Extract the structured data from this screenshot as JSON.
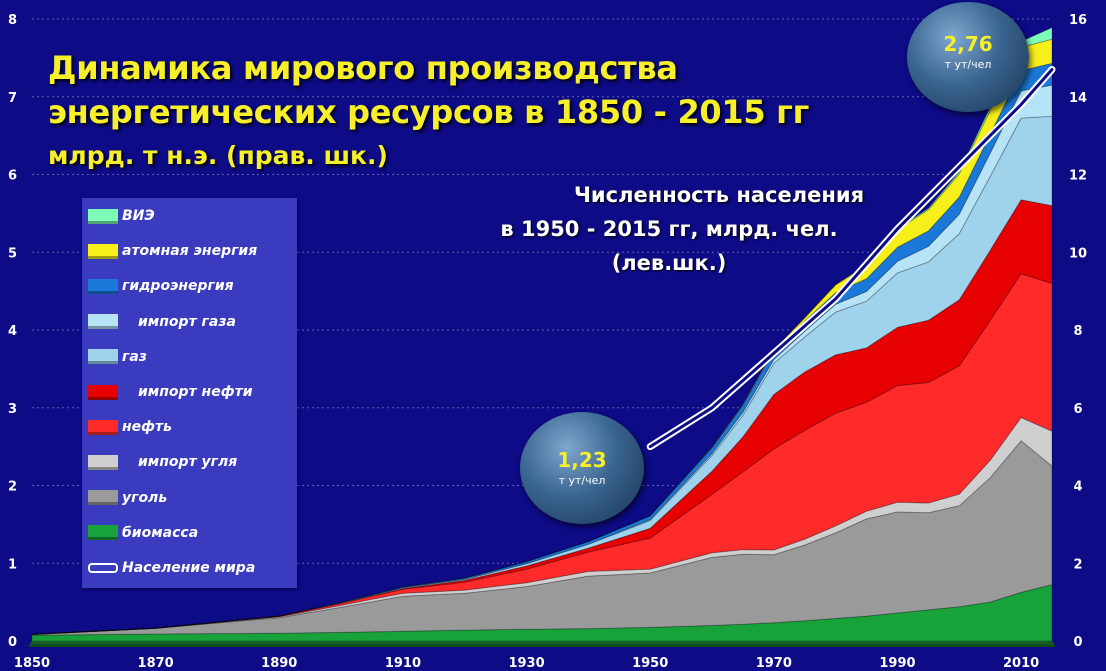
{
  "title": {
    "line1": "Динамика мирового производства",
    "line2": "энергетических ресурсов в 1850 - 2015 гг",
    "line3": "млрд. т н.э. (прав. шк.)"
  },
  "population_label": {
    "line1": "Численность населения",
    "line2": "в 1950 - 2015 гг, млрд. чел. (лев.шк.)"
  },
  "bubbles": [
    {
      "value": "1,23",
      "unit": "т ут/чел"
    },
    {
      "value": "2,76",
      "unit": "т ут/чел"
    }
  ],
  "legend": [
    {
      "label": "ВИЭ",
      "color": "#7dfcb7",
      "indent": false
    },
    {
      "label": "атомная энергия",
      "color": "#f7ef1a",
      "indent": false
    },
    {
      "label": "гидроэнергия",
      "color": "#1a78d8",
      "indent": false
    },
    {
      "label": "импорт газа",
      "color": "#b7e3f6",
      "indent": true
    },
    {
      "label": "газ",
      "color": "#9fd3ec",
      "indent": false
    },
    {
      "label": "импорт нефти",
      "color": "#e60000",
      "indent": true
    },
    {
      "label": "нефть",
      "color": "#ff2a2a",
      "indent": false
    },
    {
      "label": "импорт угля",
      "color": "#cfcfcf",
      "indent": true
    },
    {
      "label": "уголь",
      "color": "#9a9a9a",
      "indent": false
    },
    {
      "label": "биомасса",
      "color": "#18a23a",
      "indent": false
    },
    {
      "label": "Население мира",
      "color": "#ffffff",
      "indent": false,
      "line": true
    }
  ],
  "chart_data": {
    "type": "area",
    "x_ticks": [
      "1850",
      "1870",
      "1890",
      "1910",
      "1930",
      "1950",
      "1970",
      "1990",
      "2010"
    ],
    "left_axis_ticks": [
      "0",
      "1",
      "2",
      "3",
      "4",
      "5",
      "6",
      "7",
      "8"
    ],
    "right_axis_ticks": [
      "0",
      "2",
      "4",
      "6",
      "8",
      "10",
      "12",
      "14",
      "16"
    ],
    "xlim": [
      1850,
      2015
    ],
    "ylim_right": [
      0,
      16
    ],
    "ylim_left": [
      0,
      8
    ],
    "x": [
      1850,
      1870,
      1890,
      1900,
      1910,
      1920,
      1930,
      1940,
      1950,
      1960,
      1965,
      1970,
      1975,
      1980,
      1985,
      1990,
      1995,
      2000,
      2005,
      2010,
      2015
    ],
    "series": [
      {
        "name": "биомасса",
        "color": "#18a23a",
        "values": [
          0.15,
          0.18,
          0.2,
          0.22,
          0.25,
          0.28,
          0.3,
          0.32,
          0.35,
          0.4,
          0.43,
          0.47,
          0.52,
          0.58,
          0.64,
          0.72,
          0.8,
          0.88,
          1.0,
          1.25,
          1.45
        ]
      },
      {
        "name": "уголь",
        "color": "#9a9a9a",
        "values": [
          0.02,
          0.15,
          0.4,
          0.65,
          0.9,
          0.95,
          1.1,
          1.35,
          1.4,
          1.75,
          1.8,
          1.75,
          1.95,
          2.2,
          2.5,
          2.6,
          2.5,
          2.6,
          3.2,
          3.9,
          3.05
        ]
      },
      {
        "name": "импорт угля",
        "color": "#cfcfcf",
        "values": [
          0.0,
          0.0,
          0.02,
          0.05,
          0.08,
          0.08,
          0.1,
          0.12,
          0.1,
          0.12,
          0.12,
          0.12,
          0.15,
          0.18,
          0.2,
          0.25,
          0.25,
          0.3,
          0.45,
          0.6,
          0.9
        ]
      },
      {
        "name": "нефть",
        "color": "#ff2a2a",
        "values": [
          0.0,
          0.0,
          0.02,
          0.05,
          0.1,
          0.2,
          0.35,
          0.5,
          0.8,
          1.5,
          2.0,
          2.6,
          2.8,
          2.9,
          2.8,
          3.0,
          3.1,
          3.3,
          3.6,
          3.7,
          3.8
        ]
      },
      {
        "name": "импорт нефти",
        "color": "#e60000",
        "values": [
          0.0,
          0.0,
          0.0,
          0.0,
          0.02,
          0.05,
          0.08,
          0.1,
          0.25,
          0.6,
          0.9,
          1.4,
          1.5,
          1.5,
          1.4,
          1.5,
          1.6,
          1.7,
          1.8,
          1.9,
          2.0
        ]
      },
      {
        "name": "газ",
        "color": "#9fd3ec",
        "values": [
          0.0,
          0.0,
          0.0,
          0.01,
          0.02,
          0.03,
          0.06,
          0.1,
          0.2,
          0.4,
          0.55,
          0.8,
          0.9,
          1.1,
          1.2,
          1.4,
          1.5,
          1.7,
          1.9,
          2.1,
          2.3
        ]
      },
      {
        "name": "импорт газа",
        "color": "#b7e3f6",
        "values": [
          0.0,
          0.0,
          0.0,
          0.0,
          0.0,
          0.0,
          0.0,
          0.0,
          0.02,
          0.05,
          0.08,
          0.1,
          0.15,
          0.2,
          0.25,
          0.3,
          0.4,
          0.5,
          0.6,
          0.7,
          0.8
        ]
      },
      {
        "name": "гидроэнергия",
        "color": "#1a78d8",
        "values": [
          0.0,
          0.0,
          0.0,
          0.01,
          0.02,
          0.03,
          0.05,
          0.07,
          0.1,
          0.15,
          0.18,
          0.22,
          0.26,
          0.3,
          0.33,
          0.36,
          0.4,
          0.44,
          0.48,
          0.52,
          0.56
        ]
      },
      {
        "name": "атомная энергия",
        "color": "#f7ef1a",
        "values": [
          0,
          0,
          0,
          0,
          0,
          0,
          0,
          0,
          0,
          0.01,
          0.02,
          0.03,
          0.08,
          0.2,
          0.35,
          0.45,
          0.55,
          0.6,
          0.62,
          0.6,
          0.62
        ]
      },
      {
        "name": "ВИЭ",
        "color": "#7dfcb7",
        "values": [
          0,
          0,
          0,
          0,
          0,
          0,
          0,
          0,
          0,
          0,
          0,
          0,
          0,
          0,
          0.01,
          0.02,
          0.03,
          0.05,
          0.08,
          0.15,
          0.3
        ]
      }
    ],
    "population": {
      "name": "Население мира",
      "axis": "left",
      "x": [
        1950,
        1960,
        1970,
        1980,
        1990,
        2000,
        2010,
        2015
      ],
      "values": [
        2.5,
        3.0,
        3.7,
        4.4,
        5.3,
        6.1,
        6.9,
        7.35
      ]
    }
  }
}
